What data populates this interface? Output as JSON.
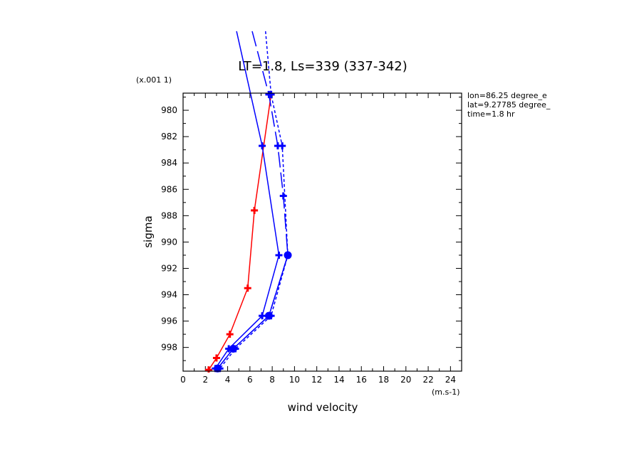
{
  "chart_data": {
    "type": "line",
    "title": "LT=1.8, Ls=339 (337-342)",
    "xlabel": "wind velocity",
    "ylabel": "sigma",
    "x_multiplier_label": "(m.s-1)",
    "y_multiplier_label": "(x.001 1)",
    "xlim": [
      0,
      25
    ],
    "ylim": [
      999.8,
      978.7
    ],
    "x_ticks": [
      0,
      2,
      4,
      6,
      8,
      10,
      12,
      14,
      16,
      18,
      20,
      22,
      24
    ],
    "y_ticks": [
      980,
      982,
      984,
      986,
      988,
      990,
      992,
      994,
      996,
      998
    ],
    "grid": false,
    "annotations": [
      "lon=86.25 degree_e",
      "lat=9.27785 degree_",
      "time=1.8 hr"
    ],
    "series": [
      {
        "color": "#ff0000",
        "style": "solid",
        "marker": "plus",
        "points": [
          [
            7.9,
            978.8
          ],
          [
            6.4,
            987.6
          ],
          [
            5.8,
            993.5
          ],
          [
            4.2,
            997.0
          ],
          [
            3.0,
            998.8
          ],
          [
            2.3,
            999.7
          ]
        ]
      },
      {
        "color": "#0000ff",
        "style": "solid",
        "marker": "plus",
        "points": [
          [
            4.8,
            974.0
          ],
          [
            7.1,
            982.7
          ],
          [
            8.6,
            991.0
          ],
          [
            7.1,
            995.6
          ],
          [
            4.1,
            998.1
          ],
          [
            2.9,
            999.6
          ]
        ]
      },
      {
        "color": "#0000ff",
        "style": "solid",
        "marker": "dot",
        "points": [
          [
            9.4,
            991.0
          ],
          [
            7.7,
            995.6
          ],
          [
            4.5,
            998.1
          ],
          [
            3.1,
            999.6
          ]
        ]
      },
      {
        "color": "#0000ff",
        "style": "long-dash",
        "marker": "plus",
        "points": [
          [
            6.2,
            974.0
          ],
          [
            7.7,
            978.8
          ],
          [
            8.5,
            982.7
          ],
          [
            9.0,
            986.5
          ],
          [
            9.4,
            991.0
          ],
          [
            7.7,
            995.6
          ],
          [
            4.5,
            998.1
          ],
          [
            3.1,
            999.6
          ]
        ]
      },
      {
        "color": "#0000ff",
        "style": "short-dash",
        "marker": "plus",
        "points": [
          [
            7.4,
            974.0
          ],
          [
            7.9,
            978.8
          ],
          [
            8.9,
            982.7
          ],
          [
            9.4,
            991.0
          ],
          [
            7.9,
            995.6
          ],
          [
            4.7,
            998.1
          ],
          [
            3.3,
            999.6
          ]
        ]
      }
    ]
  }
}
